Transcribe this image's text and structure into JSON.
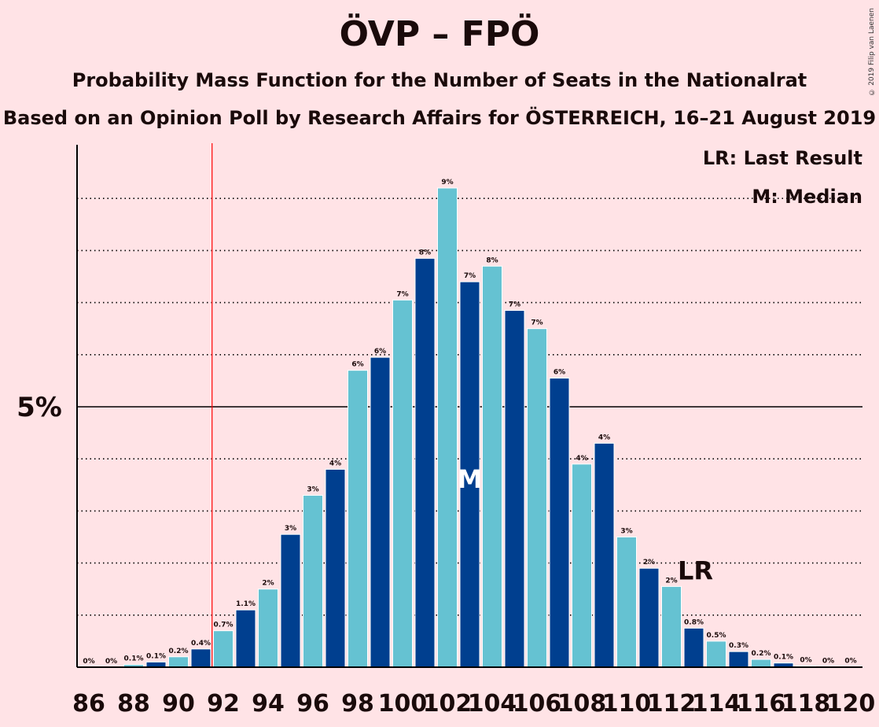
{
  "title": "ÖVP – FPÖ",
  "subtitle1": "Probability Mass Function for the Number of Seats in the Nationalrat",
  "subtitle2": "Based on an Opinion Poll by Research Affairs for ÖSTERREICH, 16–21 August 2019",
  "copyright": "© 2019 Filip van Laenen",
  "legend": {
    "last_result": "LR: Last Result",
    "median": "M: Median"
  },
  "colors": {
    "background": "#FFE3E6",
    "dark_bar": "#003F8F",
    "light_bar": "#65C2D2",
    "threshold_line": "#FF0000"
  },
  "chart_data": {
    "type": "bar",
    "x": [
      86,
      87,
      88,
      89,
      90,
      91,
      92,
      93,
      94,
      95,
      96,
      97,
      98,
      99,
      100,
      101,
      102,
      103,
      104,
      105,
      106,
      107,
      108,
      109,
      110,
      111,
      112,
      113,
      114,
      115,
      116,
      117,
      118,
      119,
      120
    ],
    "values": [
      0,
      0,
      0.05,
      0.1,
      0.2,
      0.35,
      0.7,
      1.1,
      1.5,
      2.55,
      3.3,
      3.8,
      5.7,
      5.95,
      7.05,
      7.85,
      9.2,
      7.4,
      7.7,
      6.85,
      6.5,
      5.55,
      3.9,
      4.3,
      2.5,
      1.9,
      1.55,
      0.75,
      0.5,
      0.3,
      0.15,
      0.08,
      0.02,
      0.01,
      0.005
    ],
    "value_labels": [
      "0%",
      "0%",
      "0.1%",
      "0.1%",
      "0.2%",
      "0.4%",
      "0.7%",
      "1.1%",
      "2%",
      "3%",
      "3%",
      "4%",
      "6%",
      "6%",
      "7%",
      "8%",
      "9%",
      "7%",
      "8%",
      "7%",
      "7%",
      "6%",
      "4%",
      "4%",
      "3%",
      "2%",
      "2%",
      "0.8%",
      "0.5%",
      "0.3%",
      "0.2%",
      "0.1%",
      "0%",
      "0%",
      "0%"
    ],
    "x_tick_labels": [
      "86",
      "88",
      "90",
      "92",
      "94",
      "96",
      "98",
      "100",
      "102",
      "104",
      "106",
      "108",
      "110",
      "112",
      "114",
      "116",
      "118",
      "120"
    ],
    "y_tick_label": "5%",
    "y_tick_value": 5,
    "ylim": [
      0,
      10
    ],
    "gridlines": [
      1,
      2,
      3,
      4,
      6,
      7,
      8,
      9
    ],
    "majority_threshold": 91.5,
    "median_seat": 103,
    "median_label": "M",
    "last_result_seat": 113,
    "last_result_label": "LR"
  }
}
